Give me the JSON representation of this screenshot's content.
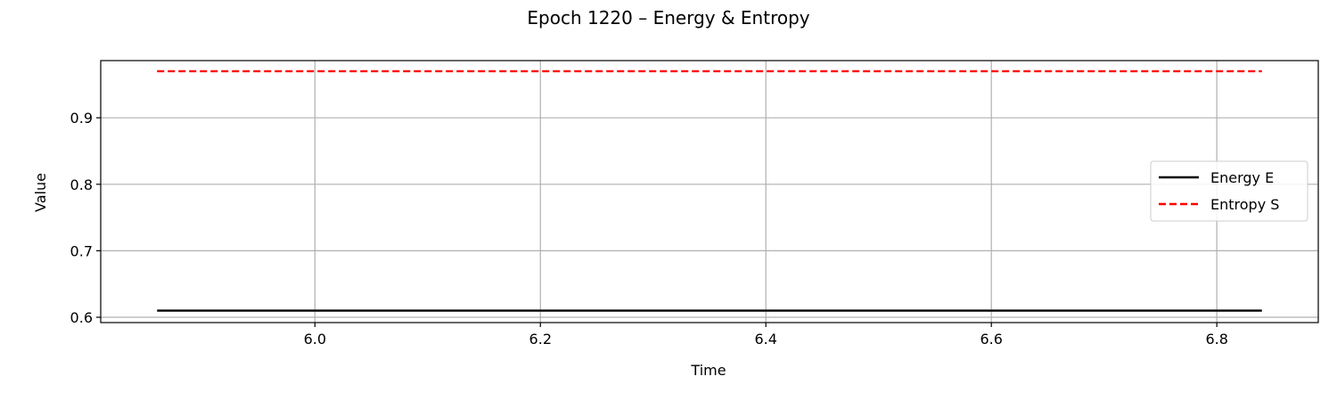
{
  "chart_data": {
    "type": "line",
    "title": "Epoch 1220 – Energy & Entropy",
    "xlabel": "Time",
    "ylabel": "Value",
    "xlim": [
      5.81,
      6.89
    ],
    "ylim": [
      0.592,
      0.986
    ],
    "xticks": [
      6.0,
      6.2,
      6.4,
      6.6,
      6.8
    ],
    "xtick_labels": [
      "6.0",
      "6.2",
      "6.4",
      "6.6",
      "6.8"
    ],
    "yticks": [
      0.6,
      0.7,
      0.8,
      0.9
    ],
    "ytick_labels": [
      "0.6",
      "0.7",
      "0.8",
      "0.9"
    ],
    "grid": true,
    "legend_position": "center-right",
    "series": [
      {
        "name": "Energy E",
        "color": "#000000",
        "style": "solid",
        "x": [
          5.86,
          6.84
        ],
        "y": [
          0.61,
          0.61
        ]
      },
      {
        "name": "Entropy S",
        "color": "#ff0000",
        "style": "dashed",
        "x": [
          5.86,
          6.84
        ],
        "y": [
          0.97,
          0.97
        ]
      }
    ]
  }
}
